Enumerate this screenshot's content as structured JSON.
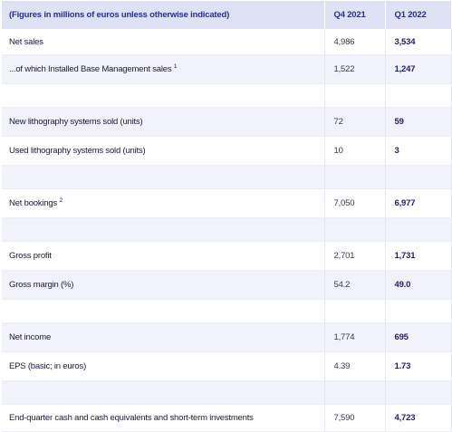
{
  "table": {
    "headers": [
      "(Figures in millions of euros unless otherwise indicated)",
      "Q4 2021",
      "Q1 2022"
    ],
    "rows": [
      {
        "label": "Net sales",
        "q4_2021": "4,986",
        "q1_2022": "3,534"
      },
      {
        "label": "...of which Installed Base Management sales",
        "footnote": "1",
        "q4_2021": "1,522",
        "q1_2022": "1,247"
      },
      {
        "label": "New lithography systems sold (units)",
        "q4_2021": "72",
        "q1_2022": "59"
      },
      {
        "label": "Used lithography systems sold (units)",
        "q4_2021": "10",
        "q1_2022": "3"
      },
      {
        "label": "Net bookings",
        "footnote": "2",
        "q4_2021": "7,050",
        "q1_2022": "6,977"
      },
      {
        "label": "Gross profit",
        "q4_2021": "2,701",
        "q1_2022": "1,731"
      },
      {
        "label": "Gross margin (%)",
        "q4_2021": "54.2",
        "q1_2022": "49.0"
      },
      {
        "label": "Net income",
        "q4_2021": "1,774",
        "q1_2022": "695"
      },
      {
        "label": "EPS (basic; in euros)",
        "q4_2021": "4.39",
        "q1_2022": "1.73"
      },
      {
        "label": "End-quarter cash and cash equivalents and short-term investments",
        "q4_2021": "7,590",
        "q1_2022": "4,723"
      }
    ]
  },
  "colors": {
    "header_bg": "#dfe1f5",
    "header_text": "#2b2f8f",
    "alt_row_bg": "#f1f2fa",
    "bold_value": "#1f1f6e"
  }
}
